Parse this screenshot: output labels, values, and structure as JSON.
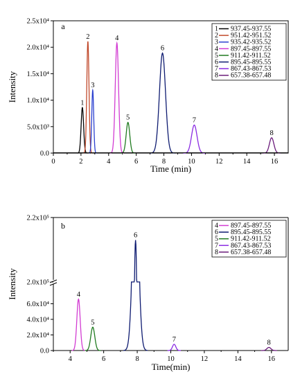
{
  "chart_data": [
    {
      "panel": "a",
      "type": "line",
      "xlabel": "Time (min)",
      "ylabel": "Intensity",
      "xlim": [
        0,
        17
      ],
      "ylim": [
        0,
        25000
      ],
      "x_ticks": [
        "0",
        "2",
        "4",
        "6",
        "8",
        "10",
        "12",
        "14",
        "16"
      ],
      "y_ticks": [
        "0.0",
        "5.0x10³",
        "1.0x10⁴",
        "1.5x10⁴",
        "2.0x10⁴",
        "2.5x10⁴"
      ],
      "y_tick_values": [
        0,
        5000,
        10000,
        15000,
        20000,
        25000
      ],
      "legend_position": "top-right",
      "series": [
        {
          "label": "1",
          "range": "937.45-937.55",
          "color": "#000000",
          "peak_time": 2.1,
          "peak_height": 8600,
          "width": 0.09
        },
        {
          "label": "2",
          "range": "951.42-951.52",
          "color": "#c0482a",
          "peak_time": 2.5,
          "peak_height": 21100,
          "width": 0.08
        },
        {
          "label": "3",
          "range": "935.42-935.52",
          "color": "#2a3fcf",
          "peak_time": 2.85,
          "peak_height": 11900,
          "width": 0.07
        },
        {
          "label": "4",
          "range": "897.45-897.55",
          "color": "#d23bd2",
          "peak_time": 4.6,
          "peak_height": 20800,
          "width": 0.12
        },
        {
          "label": "5",
          "range": "911.42-911.52",
          "color": "#1f7a1f",
          "peak_time": 5.4,
          "peak_height": 5800,
          "width": 0.13
        },
        {
          "label": "6",
          "range": "895.45-895.55",
          "color": "#0d1a70",
          "peak_time": 7.9,
          "peak_height": 18900,
          "width": 0.22
        },
        {
          "label": "7",
          "range": "867.43-867.53",
          "color": "#8a2be2",
          "peak_time": 10.2,
          "peak_height": 5300,
          "width": 0.2
        },
        {
          "label": "8",
          "range": "657.38-657.48",
          "color": "#6a1b7a",
          "peak_time": 15.8,
          "peak_height": 2900,
          "width": 0.16
        }
      ]
    },
    {
      "panel": "b",
      "type": "line",
      "xlabel": "Time(min)",
      "ylabel": "Intensity",
      "xlim": [
        3,
        17
      ],
      "ylim_lower": [
        0,
        80000
      ],
      "ylim_upper": [
        200000,
        220000
      ],
      "axis_break": true,
      "x_ticks": [
        "4",
        "6",
        "8",
        "10",
        "12",
        "14",
        "16"
      ],
      "y_ticks_lower": [
        "0.0",
        "2.0x10⁴",
        "4.0x10⁴",
        "6.0x10⁴"
      ],
      "y_tick_values_lower": [
        0,
        20000,
        40000,
        60000
      ],
      "y_ticks_upper": [
        "2.0x10⁵",
        "2.2x10⁵"
      ],
      "y_tick_values_upper": [
        200000,
        220000
      ],
      "legend_position": "top-right",
      "series": [
        {
          "label": "4",
          "range": "897.45-897.55",
          "color": "#d23bd2",
          "peak_time": 4.5,
          "peak_height": 66000,
          "width": 0.1
        },
        {
          "label": "6",
          "range": "895.45-895.55",
          "color": "#0d1a70",
          "peak_time": 7.9,
          "peak_height": 213000,
          "width": 0.18
        },
        {
          "label": "5",
          "range": "911.42-911.52",
          "color": "#1f7a1f",
          "peak_time": 5.35,
          "peak_height": 30000,
          "width": 0.12
        },
        {
          "label": "7",
          "range": "867.43-867.53",
          "color": "#8a2be2",
          "peak_time": 10.2,
          "peak_height": 8000,
          "width": 0.1
        },
        {
          "label": "8",
          "range": "657.38-657.48",
          "color": "#6a1b7a",
          "peak_time": 15.85,
          "peak_height": 4000,
          "width": 0.12
        }
      ]
    }
  ]
}
